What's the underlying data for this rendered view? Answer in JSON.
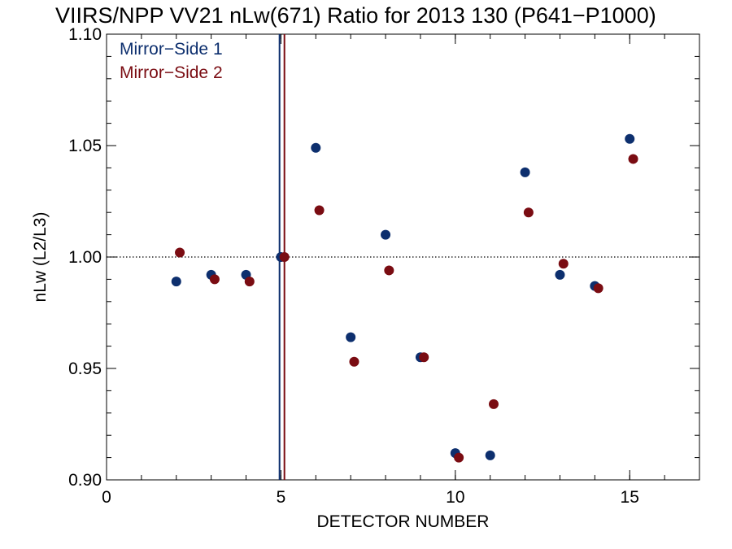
{
  "chart_data": {
    "type": "scatter",
    "title": "VIIRS/NPP VV21 nLw(671) Ratio for 2013 130 (P641−P1000)",
    "xlabel": "DETECTOR NUMBER",
    "ylabel": "nLw (L2/L3)",
    "xlim": [
      0,
      17
    ],
    "ylim": [
      0.9,
      1.1
    ],
    "x_ticks": [
      0,
      5,
      10,
      15
    ],
    "x_tick_labels": [
      "0",
      "5",
      "10",
      "15"
    ],
    "x_minor_step": 1,
    "y_ticks": [
      0.9,
      0.95,
      1.0,
      1.05,
      1.1
    ],
    "y_tick_labels": [
      "0.90",
      "0.95",
      "1.00",
      "1.05",
      "1.10"
    ],
    "y_minor_step": 0.01,
    "reference_line": {
      "y": 1.0,
      "style": "dotted"
    },
    "grid": false,
    "legend_position": "top-left",
    "series": [
      {
        "name": "Mirror−Side 1",
        "color": "#0d2f6e",
        "marker_line_x": 4.96,
        "x": [
          2,
          3,
          4,
          5,
          6,
          7,
          8,
          9,
          10,
          11,
          12,
          13,
          14,
          15
        ],
        "y": [
          0.989,
          0.992,
          0.992,
          1.0,
          1.049,
          0.964,
          1.01,
          0.955,
          0.912,
          0.911,
          1.038,
          0.992,
          0.987,
          1.053
        ]
      },
      {
        "name": "Mirror−Side 2",
        "color": "#7a0c12",
        "marker_line_x": 5.1,
        "x": [
          2.1,
          3.1,
          4.1,
          5.1,
          6.1,
          7.1,
          8.1,
          9.1,
          10.1,
          11.1,
          12.1,
          13.1,
          14.1,
          15.1
        ],
        "y": [
          1.002,
          0.99,
          0.989,
          1.0,
          1.021,
          0.953,
          0.994,
          0.955,
          0.91,
          0.934,
          1.02,
          0.997,
          0.986,
          1.044
        ]
      }
    ]
  }
}
